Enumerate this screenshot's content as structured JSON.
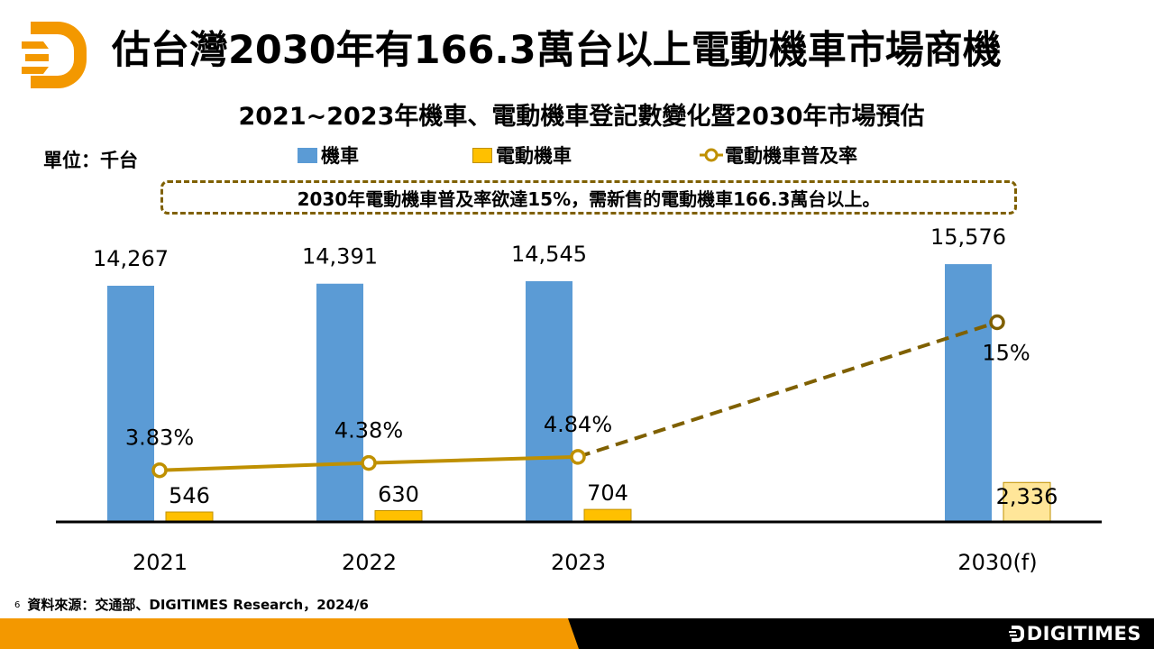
{
  "header": {
    "title": "估台灣2030年有166.3萬台以上電動機車市場商機",
    "logo_icon": "digitimes-d-logo-icon"
  },
  "chart_header": {
    "title": "2021~2023年機車、電動機車登記數變化暨2030年市場預估",
    "unit_label": "單位：千台",
    "callout": "2030年電動機車普及率欲達15%，需新售的電動機車166.3萬台以上。"
  },
  "colors": {
    "motorcycle": "#5b9bd5",
    "emotorcycle": "#ffc000",
    "emotorcycle_forecast": "#ffe699",
    "emotorcycle_border": "#bf9000",
    "rate_line": "#bf9000",
    "rate_line_forecast": "#7f6000",
    "brand_orange": "#f39800",
    "footer_black": "#000000"
  },
  "chart_data": {
    "type": "bar",
    "title": "2021~2023年機車、電動機車登記數變化暨2030年市場預估",
    "unit": "千台",
    "categories": [
      "2021",
      "2022",
      "2023",
      "2030(f)"
    ],
    "series": [
      {
        "name": "機車",
        "type": "bar",
        "values": [
          14267,
          14391,
          14545,
          15576
        ],
        "labels": [
          "14,267",
          "14,391",
          "14,545",
          "15,576"
        ]
      },
      {
        "name": "電動機車",
        "type": "bar",
        "values": [
          546,
          630,
          704,
          2336
        ],
        "labels": [
          "546",
          "630",
          "704",
          "2,336"
        ]
      },
      {
        "name": "電動機車普及率",
        "type": "line",
        "axis": "secondary",
        "values": [
          3.83,
          4.38,
          4.84,
          15
        ],
        "labels": [
          "3.83%",
          "4.38%",
          "4.84%",
          "15%"
        ],
        "forecast_from_index": 2
      }
    ],
    "legend": [
      "機車",
      "電動機車",
      "電動機車普及率"
    ],
    "legend_position": "top",
    "grid": false,
    "ylim": [
      0,
      16000
    ],
    "y2lim": [
      0,
      16
    ]
  },
  "footer": {
    "page_number": "6",
    "source": "資料來源：交通部、DIGITIMES Research，2024/6",
    "brand": "DIGITIMES"
  }
}
